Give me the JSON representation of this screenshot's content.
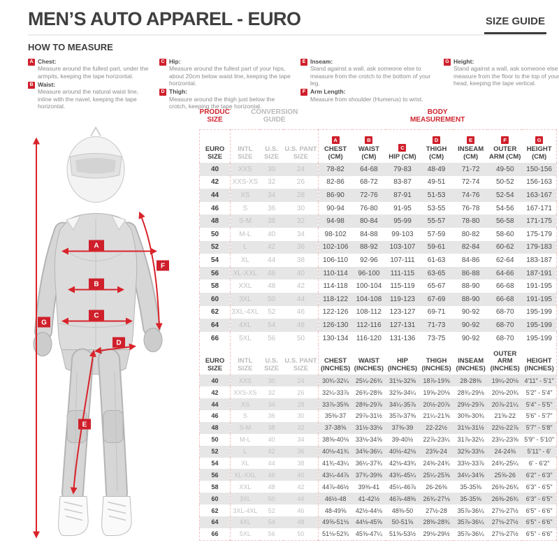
{
  "header": {
    "title": "MEN’S AUTO APPAREL - EURO",
    "size_guide": "SIZE GUIDE"
  },
  "how_to_measure": {
    "title": "HOW TO MEASURE",
    "columns": [
      [
        {
          "letter": "A",
          "label": "Chest:",
          "text": "Measure around the fullest part, under the armpits, keeping the tape horizontal."
        },
        {
          "letter": "B",
          "label": "Waist:",
          "text": "Measure around the natural waist line, inline with the navel, keeping the tape horizontal."
        }
      ],
      [
        {
          "letter": "C",
          "label": "Hip:",
          "text": "Measure around the fullest part of your hips, about 20cm below waist line, keeping the tape horizontal."
        },
        {
          "letter": "D",
          "label": "Thigh:",
          "text": "Measure around the thigh just below the crotch, keeping the tape horizontal."
        }
      ],
      [
        {
          "letter": "E",
          "label": "Inseam:",
          "text": "Stand against a wall, ask someone else to measure from the crotch to the bottom of your leg."
        },
        {
          "letter": "F",
          "label": "Arm Length:",
          "text": "Measure from shoulder (Humerus) to wrist."
        }
      ],
      [
        {
          "letter": "G",
          "label": "Height:",
          "text": "Stand against a wall, ask someone else to measure from the floor to the top of your head, keeping the tape vertical."
        }
      ]
    ]
  },
  "figure": {
    "labels": [
      "A",
      "B",
      "C",
      "D",
      "E",
      "F",
      "G"
    ],
    "accent_color": "#d8232a"
  },
  "table": {
    "group_headers": {
      "product_size": "PRODUCT SIZE",
      "conversion_guide": "CONVERSION GUIDE",
      "body_measurement": "BODY MEASUREMENT"
    },
    "letters": [
      "A",
      "B",
      "C",
      "D",
      "E",
      "F",
      "G"
    ],
    "cm": {
      "columns": [
        "EURO SIZE",
        "INTL SIZE",
        "U.S. SIZE",
        "U.S. PANT SIZE",
        "CHEST (CM)",
        "WAIST (CM)",
        "HIP (CM)",
        "THIGH (CM)",
        "INSEAM (CM)",
        "OUTER ARM (CM)",
        "HEIGHT (CM)"
      ],
      "rows": [
        [
          "40",
          "XXS",
          "30",
          "24",
          "78-82",
          "64-68",
          "79-83",
          "48-49",
          "71-72",
          "49-50",
          "150-156"
        ],
        [
          "42",
          "XXS-XS",
          "32",
          "26",
          "82-86",
          "68-72",
          "83-87",
          "49-51",
          "72-74",
          "50-52",
          "156-163"
        ],
        [
          "44",
          "XS",
          "34",
          "28",
          "86-90",
          "72-76",
          "87-91",
          "51-53",
          "74-76",
          "52-54",
          "163-167"
        ],
        [
          "46",
          "S",
          "36",
          "30",
          "90-94",
          "76-80",
          "91-95",
          "53-55",
          "76-78",
          "54-56",
          "167-171"
        ],
        [
          "48",
          "S-M",
          "38",
          "32",
          "94-98",
          "80-84",
          "95-99",
          "55-57",
          "78-80",
          "56-58",
          "171-175"
        ],
        [
          "50",
          "M-L",
          "40",
          "34",
          "98-102",
          "84-88",
          "99-103",
          "57-59",
          "80-82",
          "58-60",
          "175-179"
        ],
        [
          "52",
          "L",
          "42",
          "36",
          "102-106",
          "88-92",
          "103-107",
          "59-61",
          "82-84",
          "60-62",
          "179-183"
        ],
        [
          "54",
          "XL",
          "44",
          "38",
          "106-110",
          "92-96",
          "107-111",
          "61-63",
          "84-86",
          "62-64",
          "183-187"
        ],
        [
          "56",
          "XL-XXL",
          "46",
          "40",
          "110-114",
          "96-100",
          "111-115",
          "63-65",
          "86-88",
          "64-66",
          "187-191"
        ],
        [
          "58",
          "XXL",
          "48",
          "42",
          "114-118",
          "100-104",
          "115-119",
          "65-67",
          "88-90",
          "66-68",
          "191-195"
        ],
        [
          "60",
          "3XL",
          "50",
          "44",
          "118-122",
          "104-108",
          "119-123",
          "67-69",
          "88-90",
          "66-68",
          "191-195"
        ],
        [
          "62",
          "3XL-4XL",
          "52",
          "46",
          "122-126",
          "108-112",
          "123-127",
          "69-71",
          "90-92",
          "68-70",
          "195-199"
        ],
        [
          "64",
          "4XL",
          "54",
          "48",
          "126-130",
          "112-116",
          "127-131",
          "71-73",
          "90-92",
          "68-70",
          "195-199"
        ],
        [
          "66",
          "5XL",
          "56",
          "50",
          "130-134",
          "116-120",
          "131-136",
          "73-75",
          "90-92",
          "68-70",
          "195-199"
        ]
      ]
    },
    "inches": {
      "columns": [
        "EURO SIZE",
        "INTL SIZE",
        "U.S. SIZE",
        "U.S. PANT SIZE",
        "CHEST (INCHES)",
        "WAIST (INCHES)",
        "HIP (INCHES)",
        "THIGH (INCHES)",
        "INSEAM (INCHES)",
        "OUTER ARM (INCHES)",
        "HEIGHT (INCHES)"
      ],
      "rows": [
        [
          "40",
          "XXS",
          "30",
          "24",
          "30¾-32¼",
          "25¼-26¾",
          "31⅛-32⅝",
          "18⅞-19⅝",
          "28-28⅜",
          "19¼-20⅛",
          "4'11\" - 5'1\""
        ],
        [
          "42",
          "XXS-XS",
          "32",
          "26",
          "32¼-33⅞",
          "26¾-28⅜",
          "32⅝-34¼",
          "19⅝-20⅛",
          "28¾-29⅛",
          "20⅛-20¾",
          "5'2\" - 5'4\""
        ],
        [
          "44",
          "XS",
          "34",
          "28",
          "33⅞-35⅜",
          "28⅜-29⅞",
          "34¼-35⅞",
          "20½-20⅞",
          "29½-29⅞",
          "20⅞-21¼",
          "5'4\" - 5'5\""
        ],
        [
          "46",
          "S",
          "36",
          "30",
          "35⅜-37",
          "29⅞-31½",
          "35⅞-37⅜",
          "21¼-21⅝",
          "30⅜-30¾",
          "21⅝-22",
          "5'6\" - 5'7\""
        ],
        [
          "48",
          "S-M",
          "38",
          "32",
          "37-38⅝",
          "31½-33⅛",
          "37⅜-39",
          "22-22½",
          "31⅛-31½",
          "22½-22⅞",
          "5'7\" - 5'8\""
        ],
        [
          "50",
          "M-L",
          "40",
          "34",
          "38⅝-40⅛",
          "33⅛-34⅝",
          "39-40½",
          "22⅞-23¼",
          "31⅞-32¼",
          "23¼-23⅝",
          "5'9\" - 5'10\""
        ],
        [
          "52",
          "L",
          "42",
          "36",
          "40⅛-41¾",
          "34⅝-36¼",
          "40½-42⅛",
          "23⅝-24",
          "32⅝-33⅛",
          "24-24⅜",
          "5'11\" - 6'"
        ],
        [
          "54",
          "XL",
          "44",
          "38",
          "41¾-43¼",
          "36¼-37¾",
          "42⅛-43¾",
          "24⅜-24¾",
          "33½-33⅞",
          "24¾-25¼",
          "6' - 6'2\""
        ],
        [
          "56",
          "XL-XXL",
          "46",
          "40",
          "43¼-44⅞",
          "37¾-39⅜",
          "43¾-45¼",
          "25¼-25⅝",
          "34¼-34⅝",
          "25⅝-26",
          "6'2\" - 6'3\""
        ],
        [
          "58",
          "XXL",
          "48",
          "42",
          "44⅞-46½",
          "39⅜-41",
          "45¼-46⅞",
          "26-26⅜",
          "35-35⅜",
          "26⅜-26¾",
          "6'3\" - 6'5\""
        ],
        [
          "60",
          "3XL",
          "50",
          "44",
          "46½-48",
          "41-42½",
          "46⅞-48⅜",
          "26¾-27⅛",
          "35-35⅜",
          "26⅜-26¾",
          "6'3\" - 6'5\""
        ],
        [
          "62",
          "3XL-4XL",
          "52",
          "46",
          "48-49⅝",
          "42½-44⅛",
          "48⅜-50",
          "27½-28",
          "35⅞-36¼",
          "27⅛-27½",
          "6'5\" - 6'6\""
        ],
        [
          "64",
          "4XL",
          "54",
          "48",
          "49⅝-51⅛",
          "44⅛-45⅝",
          "50-51⅝",
          "28⅜-28¾",
          "35⅞-36¼",
          "27⅛-27½",
          "6'5\" - 6'6\""
        ],
        [
          "66",
          "5XL",
          "56",
          "50",
          "51⅛-52¾",
          "45⅝-47¼",
          "51⅝-53½",
          "29⅛-29½",
          "35⅞-36¼",
          "27⅛-27½",
          "6'5\" - 6'6\""
        ]
      ]
    }
  },
  "colors": {
    "accent_red": "#cf1f2b",
    "header_text": "#3f3f3f",
    "muted_gray": "#b9b9b9",
    "row_shade": "#e6e6e6",
    "dashed_border": "#f3c3c5"
  }
}
